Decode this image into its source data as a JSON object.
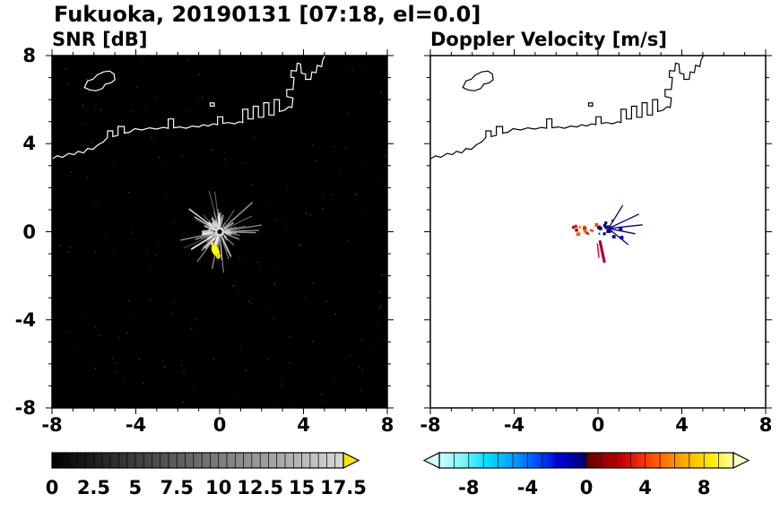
{
  "title": "Fukuoka, 20190131 [07:18, el=0.0]",
  "panels": {
    "snr": {
      "label": "SNR [dB]",
      "bg": "#000000",
      "coast_color": "#ffffff"
    },
    "doppler": {
      "label": "Doppler Velocity [m/s]",
      "bg": "#ffffff",
      "coast_color": "#000000"
    }
  },
  "axes": {
    "xlim": [
      -8,
      8
    ],
    "ylim": [
      -8,
      8
    ],
    "xticks": [
      -8,
      -4,
      0,
      4,
      8
    ],
    "yticks": [
      8,
      4,
      0,
      -4,
      -8
    ],
    "minor_tick_step": 1
  },
  "colorbars": {
    "snr": {
      "min": 0,
      "max": 17.5,
      "minor_step": 0.5,
      "ticks": [
        0,
        2.5,
        5,
        7.5,
        10,
        12.5,
        15,
        17.5
      ],
      "stops": [
        [
          0,
          "#000000"
        ],
        [
          1,
          "#d8d8d8"
        ]
      ],
      "over_arrow": "#ffe800"
    },
    "doppler": {
      "min": -10,
      "max": 10,
      "minor_step": 1,
      "ticks": [
        -8,
        -4,
        0,
        4,
        8
      ],
      "stops": [
        [
          0,
          "#c8ffff"
        ],
        [
          0.08,
          "#7df5ff"
        ],
        [
          0.16,
          "#00e0ff"
        ],
        [
          0.25,
          "#00a0ff"
        ],
        [
          0.33,
          "#0050ff"
        ],
        [
          0.41,
          "#0000d8"
        ],
        [
          0.47,
          "#000090"
        ],
        [
          0.499,
          "#000060"
        ],
        [
          0.501,
          "#5a0000"
        ],
        [
          0.55,
          "#8b0000"
        ],
        [
          0.62,
          "#c40000"
        ],
        [
          0.7,
          "#ff3800"
        ],
        [
          0.78,
          "#ff8000"
        ],
        [
          0.86,
          "#ffc000"
        ],
        [
          0.93,
          "#ffee00"
        ],
        [
          1,
          "#ffffb4"
        ]
      ],
      "under_arrow": "#d8ffff",
      "over_arrow": "#ffffc8"
    }
  },
  "chart_data": [
    {
      "type": "heatmap",
      "title": "SNR [dB]",
      "xlim": [
        -8,
        8
      ],
      "ylim": [
        -8,
        8
      ],
      "xticks": [
        -8,
        -4,
        0,
        4,
        8
      ],
      "yticks": [
        8,
        4,
        0,
        -4,
        -8
      ],
      "grid": false,
      "colorbar": {
        "range": [
          0,
          17.5
        ],
        "ticks": [
          0,
          2.5,
          5,
          7.5,
          10,
          12.5,
          15,
          17.5
        ],
        "colormap": "black-to-light-gray",
        "over_range_arrow_color": "#ffe800"
      },
      "background": "black (SNR near 0 dB everywhere except radar clutter)",
      "coastline_overlay": "white outline of Hakata Bay coast with island at upper left",
      "echoes": [
        {
          "name": "radar-clutter",
          "center_xy": [
            0,
            0
          ],
          "radius_xy": 1.8,
          "appearance": "radial gray-white spokes around radar site",
          "snr_db_range": [
            5,
            15
          ]
        },
        {
          "name": "strong-cell",
          "center_xy": [
            -0.2,
            -0.85
          ],
          "snr_db": 17.5,
          "note": "saturated yellow, above scale max",
          "color": "#ffff00"
        }
      ]
    },
    {
      "type": "heatmap",
      "title": "Doppler Velocity [m/s]",
      "xlim": [
        -8,
        8
      ],
      "ylim": [
        -8,
        8
      ],
      "xticks": [
        -8,
        -4,
        0,
        4,
        8
      ],
      "yticks": [
        8,
        4,
        0,
        -4,
        -8
      ],
      "grid": false,
      "colorbar": {
        "range": [
          -10,
          10
        ],
        "ticks": [
          -8,
          -4,
          0,
          4,
          8
        ],
        "colormap": "cyan-blue-navy / darkred-red-orange-yellow diverging",
        "under_range_arrow_color": "#d8ffff",
        "over_range_arrow_color": "#ffffc8"
      },
      "background": "white (no data)",
      "coastline_overlay": "black outline of same coast",
      "echoes": [
        {
          "name": "negative-velocity-cell",
          "center_xy": [
            0.5,
            0.15
          ],
          "velocity_ms": -2,
          "color": "#000080",
          "appearance": "navy speckles with thin spikes"
        },
        {
          "name": "positive-velocity-cell",
          "center_xy": [
            -0.75,
            0.15
          ],
          "velocity_ms": 2,
          "color": "#dd2200",
          "appearance": "red-orange speckles"
        },
        {
          "name": "velocity-streak",
          "from_xy": [
            0.1,
            -0.45
          ],
          "to_xy": [
            0.3,
            -1.35
          ],
          "velocity_ms": 1,
          "color": "#aa0030"
        }
      ]
    }
  ]
}
